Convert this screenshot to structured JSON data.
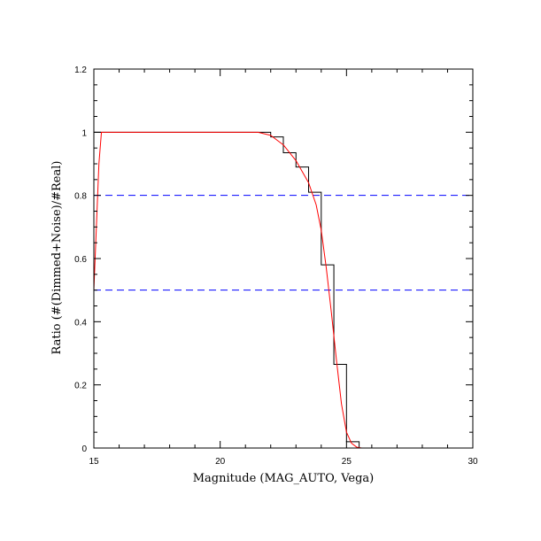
{
  "chart_data": {
    "type": "line",
    "xlabel": "Magnitude (MAG_AUTO, Vega)",
    "ylabel": "Ratio (#(Dimmed+Noise)/#Real)",
    "xlim": [
      15,
      30
    ],
    "ylim": [
      0,
      1.2
    ],
    "x_ticks": [
      "15",
      "20",
      "25",
      "30"
    ],
    "y_ticks": [
      "0",
      "0.2",
      "0.4",
      "0.6",
      "0.8",
      "1",
      "1.2"
    ],
    "grid": false,
    "colors": {
      "histogram": "#000000",
      "fit": "#ff0000",
      "reference": "#0000ff"
    },
    "series": [
      {
        "style": "step",
        "bin_edges": [
          15,
          15.5,
          16,
          16.5,
          17,
          17.5,
          18,
          18.5,
          19,
          19.5,
          20,
          20.5,
          21,
          21.5,
          22,
          22.5,
          23,
          23.5,
          24,
          24.5,
          25,
          25.5,
          26,
          26.5,
          27,
          27.5,
          28,
          28.5,
          29,
          29.5,
          30
        ],
        "values": [
          1.0,
          1.0,
          1.0,
          1.0,
          1.0,
          1.0,
          1.0,
          1.0,
          1.0,
          1.0,
          1.0,
          1.0,
          1.0,
          1.0,
          0.985,
          0.935,
          0.89,
          0.81,
          0.58,
          0.265,
          0.02,
          0.0,
          0.0,
          0.0,
          0.0,
          0.0,
          0.0,
          0.0,
          0.0,
          0.0
        ]
      },
      {
        "style": "smooth",
        "x": [
          15.0,
          15.1,
          15.2,
          15.3,
          15.5,
          16,
          18,
          20,
          21.5,
          22.0,
          22.5,
          23.0,
          23.5,
          23.8,
          24.0,
          24.2,
          24.4,
          24.6,
          24.8,
          25.0,
          25.2,
          25.4,
          25.6,
          26,
          28,
          30
        ],
        "y": [
          0.5,
          0.7,
          0.9,
          1.0,
          1.0,
          1.0,
          1.0,
          1.0,
          1.0,
          0.99,
          0.96,
          0.91,
          0.84,
          0.77,
          0.69,
          0.57,
          0.43,
          0.28,
          0.14,
          0.05,
          0.015,
          0.003,
          0.0,
          0.0,
          0.0,
          0.0
        ]
      }
    ],
    "reference_lines": [
      {
        "orientation": "horizontal",
        "y": 0.8,
        "style": "dashed"
      },
      {
        "orientation": "horizontal",
        "y": 0.5,
        "style": "dashed"
      }
    ]
  }
}
